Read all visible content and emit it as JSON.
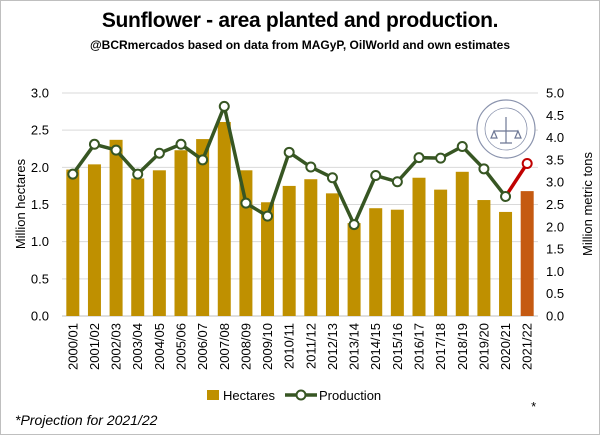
{
  "title": "Sunflower - area planted and production.",
  "subtitle": "@BCRmercados based on data from MAGyP, OilWorld and own estimates",
  "footnote": "*Projection for 2021/22",
  "logo_text": "BOLSA DE COMERCIO DE ROSARIO",
  "chart_data": {
    "type": "bar+line",
    "categories": [
      "2000/01",
      "2001/02",
      "2002/03",
      "2003/04",
      "2004/05",
      "2005/06",
      "2006/07",
      "2007/08",
      "2008/09",
      "2009/10",
      "2010/11",
      "2011/12",
      "2012/13",
      "2013/14",
      "2014/15",
      "2015/16",
      "2016/17",
      "2017/18",
      "2018/19",
      "2019/20",
      "2020/21",
      "2021/22"
    ],
    "projection_marker": "*",
    "series": [
      {
        "name": "Hectares",
        "type": "bar",
        "axis": "left",
        "color": "#BF9000",
        "projection_color": "#C55A11",
        "values": [
          1.97,
          2.04,
          2.37,
          1.85,
          1.96,
          2.23,
          2.38,
          2.61,
          1.96,
          1.53,
          1.75,
          1.84,
          1.65,
          1.25,
          1.45,
          1.43,
          1.86,
          1.7,
          1.94,
          1.56,
          1.4,
          1.68
        ]
      },
      {
        "name": "Production",
        "type": "line",
        "axis": "right",
        "color": "#375623",
        "projection_color": "#C00000",
        "values": [
          3.18,
          3.85,
          3.72,
          3.18,
          3.65,
          3.85,
          3.5,
          4.7,
          2.53,
          2.24,
          3.67,
          3.34,
          3.1,
          2.05,
          3.15,
          3.01,
          3.55,
          3.54,
          3.8,
          3.3,
          2.68,
          3.42
        ]
      }
    ],
    "ylabel_left": "Million hectares",
    "ylabel_right": "Million metric tons",
    "ylim_left": [
      0,
      3.0
    ],
    "ylim_right": [
      0,
      5.0
    ],
    "yticks_left": [
      "0.0",
      "0.5",
      "1.0",
      "1.5",
      "2.0",
      "2.5",
      "3.0"
    ],
    "yticks_right": [
      "0.0",
      "0.5",
      "1.0",
      "1.5",
      "2.0",
      "2.5",
      "3.0",
      "3.5",
      "4.0",
      "4.5",
      "5.0"
    ],
    "grid": true,
    "legend": "bottom"
  }
}
